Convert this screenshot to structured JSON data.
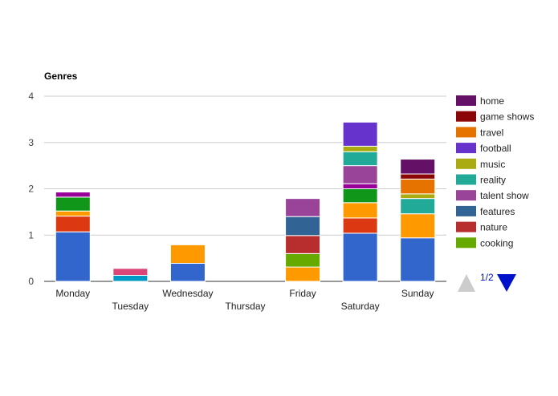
{
  "chart_data": {
    "type": "bar",
    "stacked": true,
    "title": "Genres",
    "xlabel": "",
    "ylabel": "",
    "ylim": [
      0,
      4
    ],
    "yticks": [
      0,
      1,
      2,
      3,
      4
    ],
    "grid": true,
    "legend_position": "right",
    "legend_page": "1/2",
    "categories": [
      "Monday",
      "Tuesday",
      "Wednesday",
      "Thursday",
      "Friday",
      "Saturday",
      "Sunday"
    ],
    "series": [
      {
        "color": "#3366cc",
        "values": [
          1.07,
          0,
          0.39,
          0,
          0,
          1.04,
          0.94
        ]
      },
      {
        "color": "#dc3912",
        "values": [
          0.34,
          0,
          0,
          0,
          0,
          0.33,
          0
        ]
      },
      {
        "color": "#ff9900",
        "values": [
          0.11,
          0,
          0.4,
          0,
          0.31,
          0.33,
          0.52
        ]
      },
      {
        "color": "#109618",
        "values": [
          0.3,
          0,
          0,
          0,
          0,
          0.3,
          0
        ]
      },
      {
        "color": "#990099",
        "values": [
          0.11,
          0,
          0,
          0,
          0,
          0.11,
          0
        ]
      },
      {
        "color": "#0099c6",
        "values": [
          0,
          0.13,
          0,
          0,
          0,
          0,
          0
        ]
      },
      {
        "color": "#dd4477",
        "values": [
          0,
          0.15,
          0,
          0,
          0,
          0,
          0
        ]
      },
      {
        "name": "cooking",
        "color": "#66aa00",
        "values": [
          0,
          0,
          0,
          0,
          0.29,
          0,
          0
        ]
      },
      {
        "name": "nature",
        "color": "#b82e2e",
        "values": [
          0,
          0,
          0,
          0,
          0.39,
          0,
          0
        ]
      },
      {
        "name": "features",
        "color": "#316395",
        "values": [
          0,
          0,
          0,
          0,
          0.41,
          0,
          0
        ]
      },
      {
        "name": "talent show",
        "color": "#994499",
        "values": [
          0,
          0,
          0,
          0,
          0.39,
          0.39,
          0
        ]
      },
      {
        "name": "reality",
        "color": "#22aa99",
        "values": [
          0,
          0,
          0,
          0,
          0,
          0.3,
          0.33
        ]
      },
      {
        "name": "music",
        "color": "#aaaa11",
        "values": [
          0,
          0,
          0,
          0,
          0,
          0.12,
          0.1
        ]
      },
      {
        "name": "football",
        "color": "#6633cc",
        "values": [
          0,
          0,
          0,
          0,
          0,
          0.52,
          0
        ]
      },
      {
        "name": "travel",
        "color": "#e67300",
        "values": [
          0,
          0,
          0,
          0,
          0,
          0,
          0.32
        ]
      },
      {
        "name": "game shows",
        "color": "#8b0707",
        "values": [
          0,
          0,
          0,
          0,
          0,
          0,
          0.11
        ]
      },
      {
        "name": "home",
        "color": "#651067",
        "values": [
          0,
          0,
          0,
          0,
          0,
          0,
          0.32
        ]
      }
    ]
  }
}
